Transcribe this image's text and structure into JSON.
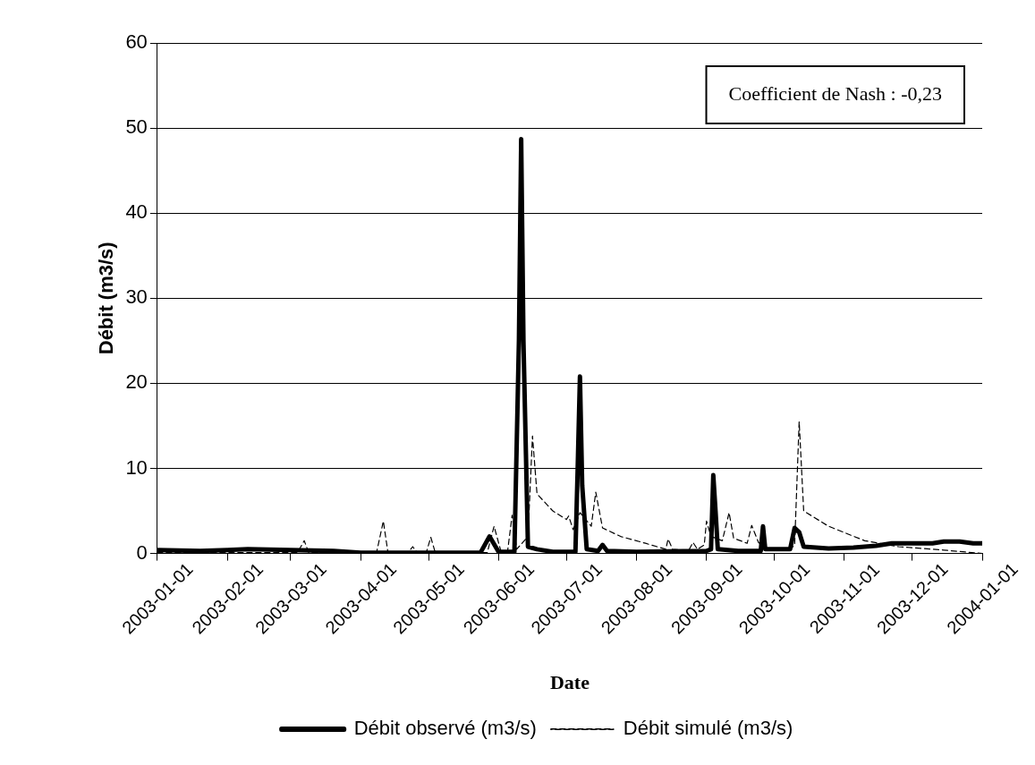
{
  "chart_data": {
    "type": "line",
    "xlabel": "Date",
    "ylabel": "Débit (m3/s)",
    "annotations": [
      "Coefficient de Nash : -0,23"
    ],
    "xlim": [
      "2003-01-01",
      "2004-01-01"
    ],
    "xticks": [
      "2003-01-01",
      "2003-02-01",
      "2003-03-01",
      "2003-04-01",
      "2003-05-01",
      "2003-06-01",
      "2003-07-01",
      "2003-08-01",
      "2003-09-01",
      "2003-10-01",
      "2003-11-01",
      "2003-12-01",
      "2004-01-01"
    ],
    "ylim": [
      0,
      60
    ],
    "yticks": [
      0,
      10,
      20,
      30,
      40,
      50,
      60
    ],
    "grid": "y",
    "legend": "bottom",
    "marker": "none",
    "series": [
      {
        "name": "Débit observé (m3/s)",
        "color": "#000000",
        "line_style": "solid",
        "x": [
          "2003-01-01",
          "2003-01-20",
          "2003-02-01",
          "2003-02-10",
          "2003-03-01",
          "2003-03-20",
          "2003-04-01",
          "2003-05-01",
          "2003-05-24",
          "2003-05-28",
          "2003-06-01",
          "2003-06-08",
          "2003-06-10",
          "2003-06-11",
          "2003-06-12",
          "2003-06-14",
          "2003-06-18",
          "2003-06-25",
          "2003-07-05",
          "2003-07-06",
          "2003-07-07",
          "2003-07-08",
          "2003-07-10",
          "2003-07-15",
          "2003-07-17",
          "2003-07-19",
          "2003-08-01",
          "2003-09-01",
          "2003-09-03",
          "2003-09-04",
          "2003-09-05",
          "2003-09-06",
          "2003-09-15",
          "2003-09-25",
          "2003-09-26",
          "2003-09-27",
          "2003-10-08",
          "2003-10-10",
          "2003-10-12",
          "2003-10-14",
          "2003-10-25",
          "2003-11-05",
          "2003-11-15",
          "2003-11-22",
          "2003-12-10",
          "2003-12-15",
          "2003-12-22",
          "2003-12-28",
          "2004-01-01"
        ],
        "values": [
          0.4,
          0.3,
          0.4,
          0.5,
          0.4,
          0.3,
          0.1,
          0.1,
          0.1,
          2,
          0.2,
          0.2,
          25,
          48.7,
          25,
          0.8,
          0.5,
          0.2,
          0.2,
          10,
          20.8,
          8,
          0.5,
          0.3,
          1,
          0.3,
          0.2,
          0.3,
          0.5,
          9.2,
          5,
          0.5,
          0.3,
          0.3,
          3.2,
          0.5,
          0.5,
          3,
          2.5,
          0.8,
          0.6,
          0.7,
          0.9,
          1.2,
          1.2,
          1.4,
          1.4,
          1.2,
          1.2
        ]
      },
      {
        "name": "Débit simulé (m3/s)",
        "color": "#000000",
        "line_style": "dashed",
        "x": [
          "2003-01-01",
          "2003-03-04",
          "2003-03-07",
          "2003-03-09",
          "2003-04-08",
          "2003-04-11",
          "2003-04-13",
          "2003-04-22",
          "2003-04-24",
          "2003-04-26",
          "2003-04-30",
          "2003-05-02",
          "2003-05-04",
          "2003-05-27",
          "2003-05-30",
          "2003-06-02",
          "2003-06-05",
          "2003-06-07",
          "2003-06-09",
          "2003-06-14",
          "2003-06-16",
          "2003-06-18",
          "2003-06-25",
          "2003-07-01",
          "2003-07-02",
          "2003-07-04",
          "2003-07-07",
          "2003-07-12",
          "2003-07-14",
          "2003-07-17",
          "2003-07-25",
          "2003-08-05",
          "2003-08-14",
          "2003-08-15",
          "2003-08-17",
          "2003-08-24",
          "2003-08-26",
          "2003-08-28",
          "2003-08-31",
          "2003-09-01",
          "2003-09-03",
          "2003-09-08",
          "2003-09-11",
          "2003-09-13",
          "2003-09-19",
          "2003-09-21",
          "2003-09-24",
          "2003-09-28",
          "2003-10-08",
          "2003-10-10",
          "2003-10-12",
          "2003-10-14",
          "2003-10-25",
          "2003-11-10",
          "2003-11-25",
          "2003-12-15",
          "2004-01-01"
        ],
        "values": [
          0.1,
          0.1,
          1.5,
          0.1,
          0.1,
          3.8,
          0.2,
          0.1,
          0.8,
          0.1,
          0.1,
          1.9,
          0.1,
          0.1,
          3.2,
          0.3,
          0.3,
          4.5,
          0.5,
          2,
          13.8,
          7,
          5,
          4,
          4.4,
          2.8,
          4.8,
          3.2,
          7.2,
          3,
          2,
          1.2,
          0.5,
          1.7,
          0.5,
          0.3,
          1.3,
          0.5,
          1,
          3.8,
          2,
          1.5,
          4.8,
          1.8,
          1.2,
          3.3,
          1.3,
          0.5,
          0.5,
          1,
          15.5,
          5,
          3.2,
          1.5,
          0.8,
          0.4,
          0
        ]
      }
    ]
  }
}
